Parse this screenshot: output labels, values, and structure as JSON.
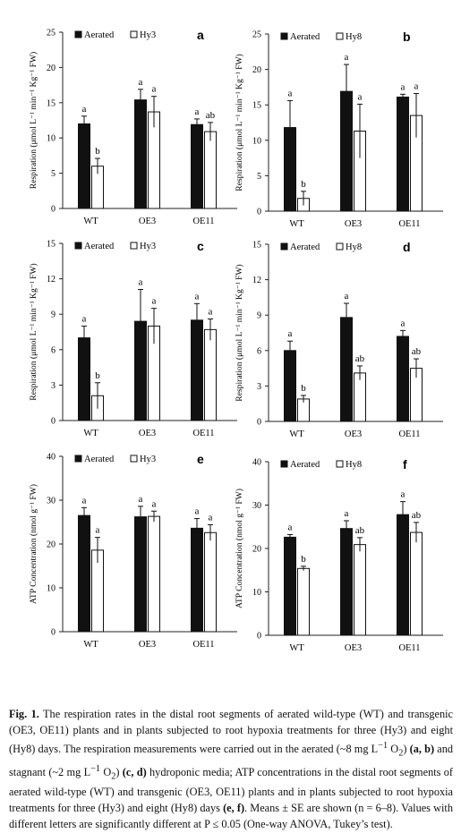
{
  "legend": {
    "aerated": "Aerated",
    "hy3": "Hy3",
    "hy8": "Hy8"
  },
  "colors": {
    "aerated": "#111111",
    "hypoxia": "#ffffff",
    "axis": "#222222"
  },
  "chart_data": [
    {
      "type": "bar",
      "panel": "a",
      "categories": [
        "WT",
        "OE3",
        "OE11"
      ],
      "ylabel": "Respiration (μmol L⁻¹ min⁻¹ Kg⁻¹ FW)",
      "ylim": [
        0,
        25
      ],
      "yticks": [
        0,
        5,
        10,
        15,
        20,
        25
      ],
      "series": [
        {
          "name": "Aerated",
          "values": [
            12.0,
            15.4,
            11.9
          ],
          "errors": [
            1.1,
            1.5,
            0.8
          ],
          "letters": [
            "a",
            "a",
            "a"
          ]
        },
        {
          "name": "Hy3",
          "values": [
            6.0,
            13.7,
            10.9
          ],
          "errors": [
            1.1,
            2.2,
            1.3
          ],
          "letters": [
            "b",
            "a",
            "ab"
          ]
        }
      ]
    },
    {
      "type": "bar",
      "panel": "b",
      "categories": [
        "WT",
        "OE3",
        "OE11"
      ],
      "ylabel": "Respiration (μmol L⁻¹ min⁻¹ Kg⁻¹ FW)",
      "ylim": [
        0,
        25
      ],
      "yticks": [
        0,
        5,
        10,
        15,
        20,
        25
      ],
      "series": [
        {
          "name": "Aerated",
          "values": [
            11.8,
            16.9,
            16.1
          ],
          "errors": [
            3.8,
            3.8,
            0.4
          ],
          "letters": [
            "a",
            "a",
            "a"
          ]
        },
        {
          "name": "Hy8",
          "values": [
            1.8,
            11.3,
            13.5
          ],
          "errors": [
            1.0,
            3.8,
            3.1
          ],
          "letters": [
            "b",
            "a",
            "a"
          ]
        }
      ]
    },
    {
      "type": "bar",
      "panel": "c",
      "categories": [
        "WT",
        "OE3",
        "OE11"
      ],
      "ylabel": "Respiration (μmol L⁻¹ min⁻¹ Kg⁻¹ FW)",
      "ylim": [
        0,
        15
      ],
      "yticks": [
        0,
        3,
        6,
        9,
        12,
        15
      ],
      "series": [
        {
          "name": "Aerated",
          "values": [
            7.0,
            8.4,
            8.5
          ],
          "errors": [
            1.0,
            2.7,
            1.4
          ],
          "letters": [
            "a",
            "a",
            "a"
          ]
        },
        {
          "name": "Hy3",
          "values": [
            2.1,
            8.0,
            7.7
          ],
          "errors": [
            1.1,
            1.5,
            0.9
          ],
          "letters": [
            "b",
            "a",
            "a"
          ]
        }
      ]
    },
    {
      "type": "bar",
      "panel": "d",
      "categories": [
        "WT",
        "OE3",
        "OE11"
      ],
      "ylabel": "Respiration (μmol L⁻¹ min⁻¹ Kg⁻¹ FW)",
      "ylim": [
        0,
        15
      ],
      "yticks": [
        0,
        3,
        6,
        9,
        12,
        15
      ],
      "series": [
        {
          "name": "Aerated",
          "values": [
            6.0,
            8.8,
            7.2
          ],
          "errors": [
            0.8,
            1.2,
            0.5
          ],
          "letters": [
            "a",
            "a",
            "a"
          ]
        },
        {
          "name": "Hy8",
          "values": [
            1.9,
            4.1,
            4.5
          ],
          "errors": [
            0.3,
            0.6,
            0.8
          ],
          "letters": [
            "b",
            "ab",
            "ab"
          ]
        }
      ]
    },
    {
      "type": "bar",
      "panel": "e",
      "categories": [
        "WT",
        "OE3",
        "OE11"
      ],
      "ylabel": "ATP Concentration (nmol g⁻¹ FW)",
      "ylim": [
        0,
        40
      ],
      "yticks": [
        0,
        10,
        20,
        30,
        40
      ],
      "series": [
        {
          "name": "Aerated",
          "values": [
            26.5,
            26.2,
            23.6
          ],
          "errors": [
            1.8,
            2.4,
            2.2
          ],
          "letters": [
            "a",
            "a",
            "a"
          ]
        },
        {
          "name": "Hy3",
          "values": [
            18.6,
            26.3,
            22.6
          ],
          "errors": [
            2.9,
            1.2,
            1.8
          ],
          "letters": [
            "a",
            "a",
            "a"
          ]
        }
      ]
    },
    {
      "type": "bar",
      "panel": "f",
      "categories": [
        "WT",
        "OE3",
        "OE11"
      ],
      "ylabel": "ATP Concentration (nmol g⁻¹ FW)",
      "ylim": [
        0,
        40
      ],
      "yticks": [
        0,
        10,
        20,
        30,
        40
      ],
      "series": [
        {
          "name": "Aerated",
          "values": [
            22.6,
            24.6,
            27.8
          ],
          "errors": [
            0.6,
            1.8,
            3.0
          ],
          "letters": [
            "a",
            "a",
            "a"
          ]
        },
        {
          "name": "Hy8",
          "values": [
            15.4,
            20.9,
            23.7
          ],
          "errors": [
            0.5,
            1.6,
            2.3
          ],
          "letters": [
            "b",
            "ab",
            "ab"
          ]
        }
      ]
    }
  ],
  "caption": {
    "label": "Fig. 1.",
    "p1": " The respiration rates in the distal root segments of aerated wild-type (WT) and transgenic (OE3, OE11) plants and in plants subjected to root hypoxia treatments for three (Hy3) and eight (Hy8) days. The respiration measurements were carried out in the aerated (~8 mg L",
    "sup1": "−1",
    "p2": " O",
    "sub1": "2",
    "p3": ") ",
    "ab": "(a, b)",
    "p4": " and stagnant (~2 mg L",
    "sup2": "−1",
    "p5": " O",
    "sub2": "2",
    "p6": ") ",
    "cd": "(c, d)",
    "p7": " hydroponic media; ATP concentrations in the distal root segments of aerated wild-type (WT) and transgenic (OE3, OE11) plants and in plants subjected to root hypoxia treatments for three (Hy3) and eight (Hy8) days ",
    "ef": "(e, f)",
    "p8": ". Means ± SE are shown (n = 6–8). Values with different letters are significantly different at P ≤ 0.05 (One-way ANOVA, Tukey’s test)."
  }
}
